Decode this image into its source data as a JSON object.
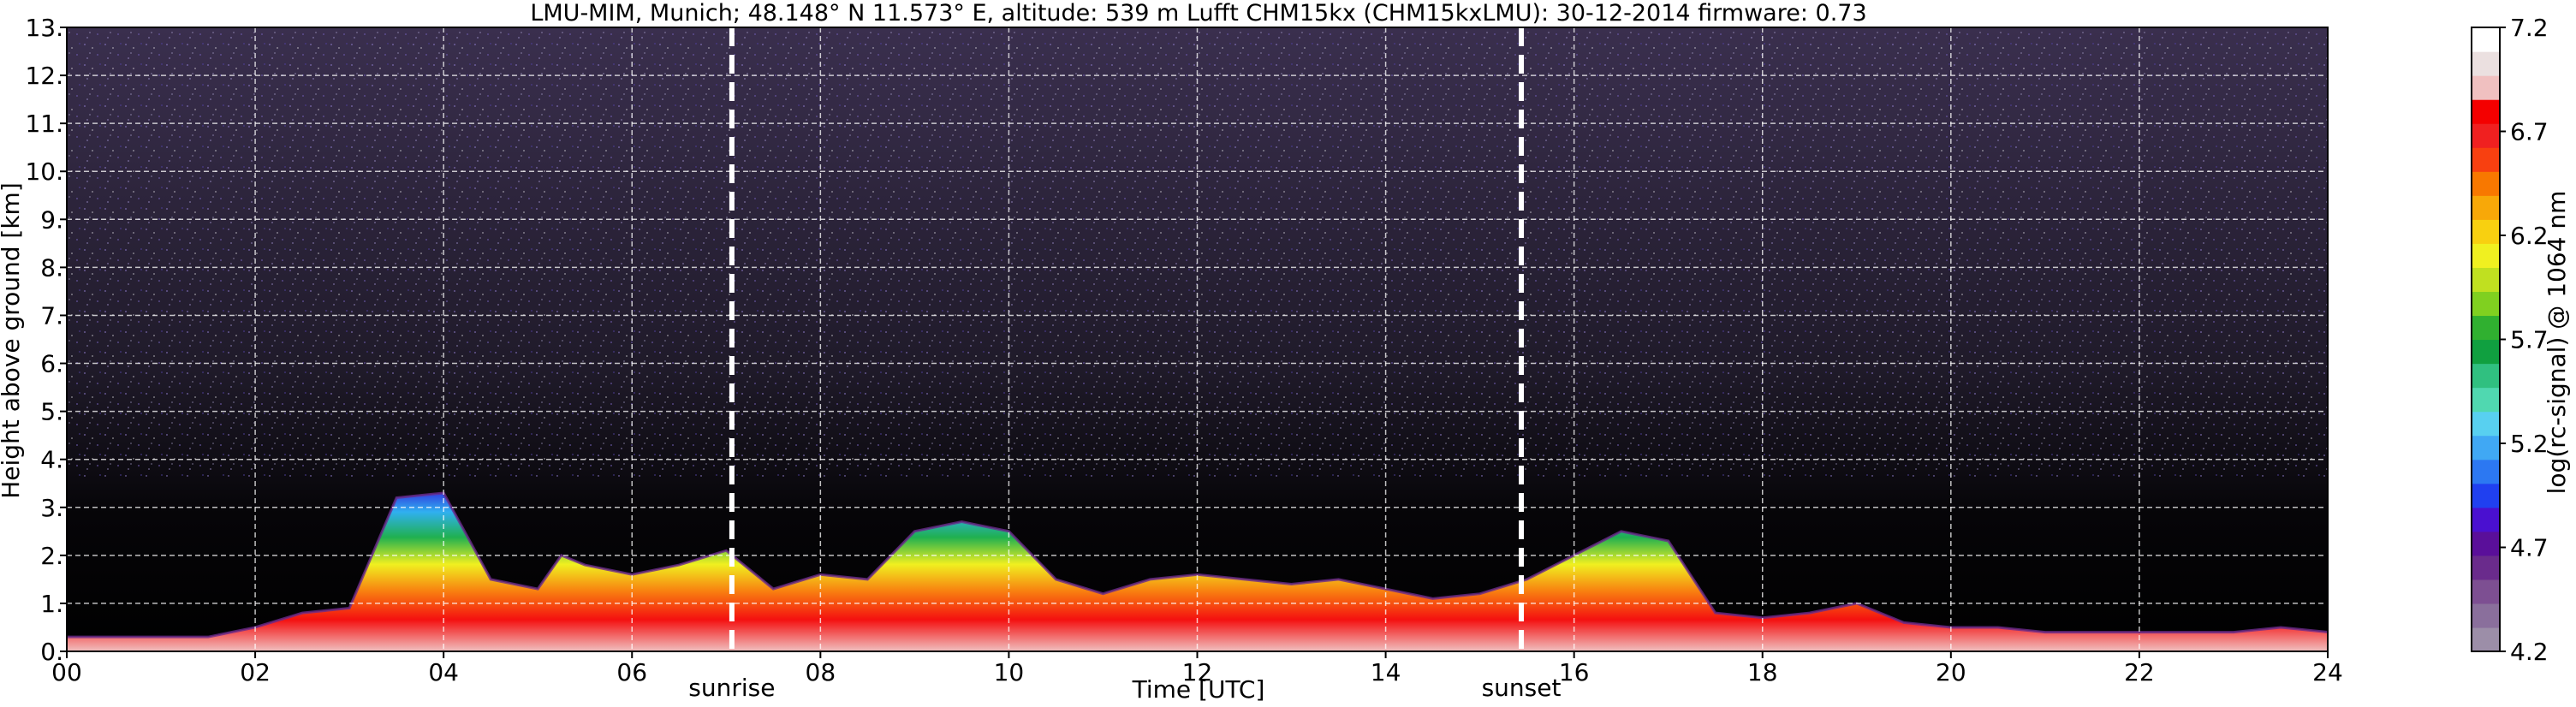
{
  "chart_data": {
    "type": "heatmap",
    "title": "LMU-MIM, Munich; 48.148° N 11.573° E, altitude: 539 m    Lufft CHM15kx (CHM15kxLMU): 30-12-2014    firmware: 0.73",
    "xlabel": "Time [UTC]",
    "ylabel": "Height above ground [km]",
    "xlim": [
      0,
      24
    ],
    "ylim": [
      0,
      13
    ],
    "x_ticks": [
      "00",
      "02",
      "04",
      "06",
      "08",
      "10",
      "12",
      "14",
      "16",
      "18",
      "20",
      "22",
      "24"
    ],
    "x_tick_values": [
      0,
      2,
      4,
      6,
      8,
      10,
      12,
      14,
      16,
      18,
      20,
      22,
      24
    ],
    "y_ticks": [
      "0.",
      "1.",
      "2.",
      "3.",
      "4.",
      "5.",
      "6.",
      "7.",
      "8.",
      "9.",
      "10.",
      "11.",
      "12.",
      "13."
    ],
    "y_tick_values": [
      0,
      1,
      2,
      3,
      4,
      5,
      6,
      7,
      8,
      9,
      10,
      11,
      12,
      13
    ],
    "grid": true,
    "colorbar": {
      "label": "log(rc-signal) @ 1064 nm",
      "range": [
        4.2,
        7.2
      ],
      "ticks": [
        "4.2",
        "4.7",
        "5.2",
        "5.7",
        "6.2",
        "6.7",
        "7.2"
      ],
      "tick_values": [
        4.2,
        4.7,
        5.2,
        5.7,
        6.2,
        6.7,
        7.2
      ],
      "colors": [
        "#9c8ea8",
        "#8a6f9c",
        "#7d4f92",
        "#6a2b8c",
        "#5a0f9a",
        "#4a10d0",
        "#2040f0",
        "#2c78f2",
        "#40a8f4",
        "#58d0f0",
        "#50d8b0",
        "#30c080",
        "#10a040",
        "#30b030",
        "#80d020",
        "#c0e020",
        "#f0f020",
        "#f8d010",
        "#f8a808",
        "#f87800",
        "#f84010",
        "#f02020",
        "#f40000",
        "#f0c0c0",
        "#ebe0e0",
        "#ffffff"
      ]
    },
    "annotations": [
      {
        "label": "sunrise",
        "x": 7.06
      },
      {
        "label": "sunset",
        "x": 15.44
      }
    ],
    "boundary_layer_height_km": {
      "x": [
        0,
        0.5,
        1,
        1.5,
        2,
        2.5,
        3,
        3.5,
        4,
        4.5,
        5,
        5.25,
        5.5,
        6,
        6.5,
        7,
        7.5,
        8,
        8.5,
        9,
        9.5,
        10,
        10.5,
        11,
        11.5,
        12,
        12.5,
        13,
        13.5,
        14,
        14.5,
        15,
        15.5,
        16,
        16.5,
        17,
        17.5,
        18,
        18.5,
        19,
        19.5,
        20,
        20.5,
        21,
        21.5,
        22,
        22.5,
        23,
        23.5,
        24
      ],
      "y": [
        0.3,
        0.3,
        0.3,
        0.3,
        0.5,
        0.8,
        0.9,
        3.2,
        3.3,
        1.5,
        1.3,
        2.0,
        1.8,
        1.6,
        1.8,
        2.1,
        1.3,
        1.6,
        1.5,
        2.5,
        2.7,
        2.5,
        1.5,
        1.2,
        1.5,
        1.6,
        1.5,
        1.4,
        1.5,
        1.3,
        1.1,
        1.2,
        1.5,
        2.0,
        2.5,
        2.3,
        0.8,
        0.7,
        0.8,
        1.0,
        0.6,
        0.5,
        0.5,
        0.4,
        0.4,
        0.4,
        0.4,
        0.4,
        0.5,
        0.4
      ]
    }
  }
}
